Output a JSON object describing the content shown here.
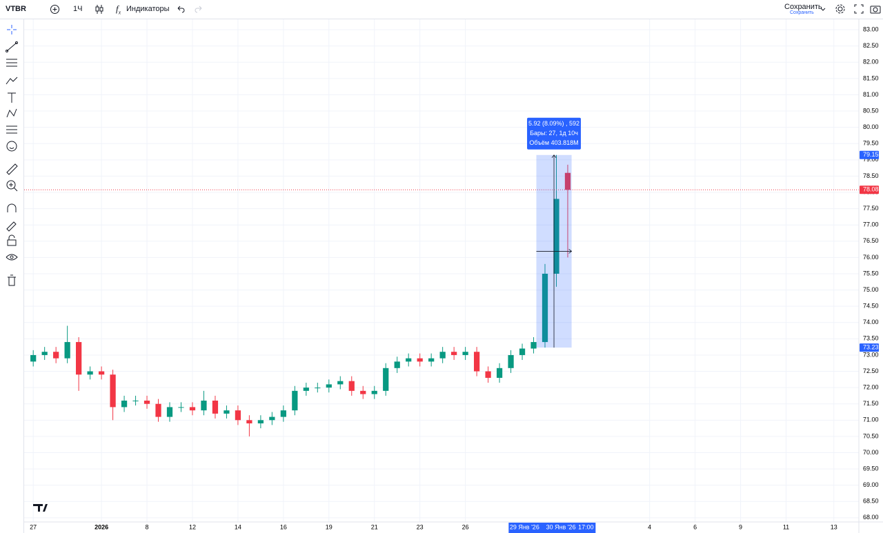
{
  "toolbar": {
    "symbol": "VTBR",
    "interval": "1Ч",
    "indicators": "Индикаторы",
    "save": "Сохранить",
    "save_status": "Сохранить"
  },
  "chart_data": {
    "type": "candlestick",
    "x": [
      0,
      0.5,
      1,
      1.5,
      2,
      2.5,
      3,
      3.5,
      4,
      4.5,
      5,
      5.5,
      6,
      6.5,
      7,
      7.5,
      8,
      8.5,
      9,
      9.5,
      10,
      10.5,
      11,
      11.5,
      12,
      12.5,
      13,
      13.5,
      14,
      14.5,
      15,
      15.5,
      16,
      16.5,
      17,
      17.5,
      18,
      18.5,
      19,
      19.5,
      20,
      20.5,
      21,
      21.5,
      22,
      22.5,
      23,
      23.5
    ],
    "open": [
      72.8,
      73.0,
      73.1,
      72.9,
      73.4,
      72.4,
      72.5,
      72.4,
      71.4,
      71.6,
      71.6,
      71.5,
      71.1,
      71.4,
      71.4,
      71.3,
      71.6,
      71.2,
      71.3,
      71.0,
      70.9,
      71.0,
      71.1,
      71.3,
      71.9,
      72.0,
      72.0,
      72.1,
      72.2,
      71.9,
      71.8,
      71.9,
      72.6,
      72.8,
      72.9,
      72.8,
      72.9,
      73.1,
      73.0,
      73.1,
      72.5,
      72.3,
      72.6,
      73.0,
      73.2,
      73.4,
      75.5,
      78.6
    ],
    "high": [
      73.15,
      73.25,
      73.25,
      73.9,
      73.55,
      72.65,
      72.65,
      72.55,
      71.75,
      71.75,
      71.75,
      71.65,
      71.55,
      71.55,
      71.55,
      71.9,
      71.75,
      71.45,
      71.45,
      71.15,
      71.15,
      71.25,
      71.45,
      72.05,
      72.15,
      72.15,
      72.25,
      72.35,
      72.35,
      72.05,
      72.05,
      72.75,
      72.95,
      73.05,
      73.05,
      73.05,
      73.25,
      73.25,
      73.25,
      73.25,
      72.65,
      72.75,
      73.15,
      73.35,
      73.55,
      75.8,
      79.15,
      78.85
    ],
    "low": [
      72.65,
      72.85,
      72.75,
      72.75,
      71.9,
      72.25,
      72.25,
      71.0,
      71.25,
      71.45,
      71.35,
      70.95,
      70.95,
      71.25,
      71.15,
      71.15,
      71.05,
      71.05,
      70.85,
      70.5,
      70.75,
      70.85,
      70.95,
      71.15,
      71.75,
      71.85,
      71.85,
      71.95,
      71.75,
      71.65,
      71.65,
      71.75,
      72.45,
      72.65,
      72.65,
      72.65,
      72.75,
      72.85,
      72.85,
      72.35,
      72.15,
      72.15,
      72.45,
      72.85,
      73.05,
      73.23,
      75.1,
      76.0
    ],
    "close": [
      73.0,
      73.1,
      72.9,
      73.4,
      72.4,
      72.5,
      72.4,
      71.4,
      71.6,
      71.6,
      71.5,
      71.1,
      71.4,
      71.4,
      71.3,
      71.6,
      71.2,
      71.3,
      71.0,
      70.9,
      71.0,
      71.1,
      71.3,
      71.9,
      72.0,
      72.0,
      72.1,
      72.2,
      71.9,
      71.8,
      71.9,
      72.6,
      72.8,
      72.9,
      72.8,
      72.9,
      73.1,
      73.0,
      73.1,
      72.5,
      72.3,
      72.6,
      73.0,
      73.2,
      73.4,
      75.5,
      77.8,
      78.08
    ],
    "up_color": "#089981",
    "down_color": "#f23645",
    "xlim": [
      -0.4,
      36.3
    ],
    "xticks": [
      {
        "value": 0,
        "label": "27"
      },
      {
        "value": 3,
        "label": "2026"
      },
      {
        "value": 5,
        "label": "8"
      },
      {
        "value": 7,
        "label": "12"
      },
      {
        "value": 9,
        "label": "14"
      },
      {
        "value": 11,
        "label": "16"
      },
      {
        "value": 13,
        "label": "19"
      },
      {
        "value": 15,
        "label": "21"
      },
      {
        "value": 17,
        "label": "23"
      },
      {
        "value": 19,
        "label": "26"
      },
      {
        "value": 27.1,
        "label": "4"
      },
      {
        "value": 29.1,
        "label": "6"
      },
      {
        "value": 31.1,
        "label": "9"
      },
      {
        "value": 33.1,
        "label": "11"
      },
      {
        "value": 35.2,
        "label": "13"
      }
    ],
    "highlight_xlabels": [
      {
        "value": 21.6,
        "label": "29 Янв '26"
      },
      {
        "value": 23.2,
        "label": "30 Янв '26"
      },
      {
        "value": 24.3,
        "label": "17:00"
      }
    ],
    "ylim": [
      67.87,
      83.32
    ],
    "yticks": [
      {
        "value": 68,
        "label": "68.00"
      },
      {
        "value": 68.5,
        "label": "68.50"
      },
      {
        "value": 69,
        "label": "69.00"
      },
      {
        "value": 69.5,
        "label": "69.50"
      },
      {
        "value": 70,
        "label": "70.00"
      },
      {
        "value": 70.5,
        "label": "70.50"
      },
      {
        "value": 71,
        "label": "71.00"
      },
      {
        "value": 71.5,
        "label": "71.50"
      },
      {
        "value": 72,
        "label": "72.00"
      },
      {
        "value": 72.5,
        "label": "72.50"
      },
      {
        "value": 73,
        "label": "73.00"
      },
      {
        "value": 73.5,
        "label": "73.50"
      },
      {
        "value": 74,
        "label": "74.00"
      },
      {
        "value": 74.5,
        "label": "74.50"
      },
      {
        "value": 75,
        "label": "75.00"
      },
      {
        "value": 75.5,
        "label": "75.50"
      },
      {
        "value": 76,
        "label": "76.00"
      },
      {
        "value": 76.5,
        "label": "76.50"
      },
      {
        "value": 77,
        "label": "77.00"
      },
      {
        "value": 77.5,
        "label": "77.50"
      },
      {
        "value": 78,
        "label": "78.00"
      },
      {
        "value": 78.5,
        "label": "78.50"
      },
      {
        "value": 79,
        "label": "79.00"
      },
      {
        "value": 79.5,
        "label": "79.50"
      },
      {
        "value": 80,
        "label": "80.00"
      },
      {
        "value": 80.5,
        "label": "80.50"
      },
      {
        "value": 81,
        "label": "81.00"
      },
      {
        "value": 81.5,
        "label": "81.50"
      },
      {
        "value": 82,
        "label": "82.00"
      },
      {
        "value": 82.5,
        "label": "82.50"
      },
      {
        "value": 83,
        "label": "83.00"
      }
    ],
    "grid": true,
    "last_price": 78.08,
    "measure": {
      "x_range": [
        22.12,
        23.67
      ],
      "from": 73.23,
      "to": 79.15,
      "color": "#2962ff",
      "lines": [
        "5.92 (8.09%) , 592",
        "Бары: 27, 1д 10ч",
        "Объём 403.818M"
      ]
    }
  }
}
